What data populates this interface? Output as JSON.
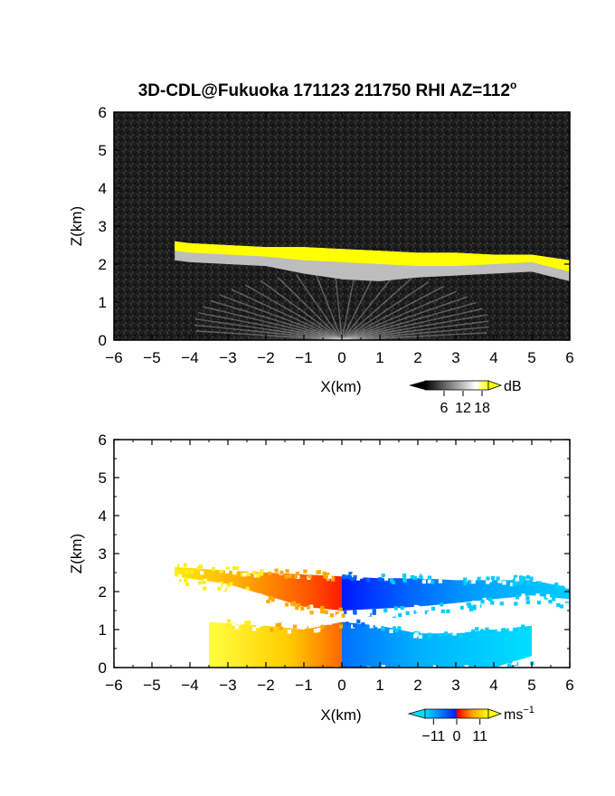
{
  "title": "3D-CDL@Fukuoka 171123 211750 RHI AZ=112",
  "title_sup": "o",
  "chart_data": [
    {
      "type": "heatmap",
      "panel": "reflectivity",
      "xlabel": "X(km)",
      "ylabel": "Z(km)",
      "xlim": [
        -6,
        6
      ],
      "ylim": [
        0,
        6
      ],
      "xticks": [
        "-6",
        "-5",
        "-4",
        "-3",
        "-2",
        "-1",
        "0",
        "1",
        "2",
        "3",
        "4",
        "5",
        "6"
      ],
      "yticks": [
        "0",
        "1",
        "2",
        "3",
        "4",
        "5",
        "6"
      ],
      "colorbar": {
        "unit": "dB",
        "ticks": [
          "6",
          "12",
          "18"
        ],
        "tick_values": [
          6,
          12,
          18
        ],
        "range": [
          0,
          20
        ],
        "colors": [
          "#000000",
          "#ffffff",
          "#ffff00"
        ]
      },
      "cloud_base": {
        "x": [
          -4.4,
          -4.0,
          -3.0,
          -2.0,
          -1.0,
          0.0,
          1.0,
          2.0,
          3.0,
          4.0,
          5.0,
          6.0
        ],
        "top_km": [
          2.6,
          2.55,
          2.5,
          2.45,
          2.45,
          2.4,
          2.35,
          2.3,
          2.3,
          2.25,
          2.25,
          2.1
        ],
        "bottom_km": [
          2.35,
          2.3,
          2.25,
          2.2,
          2.0,
          1.85,
          1.8,
          1.9,
          1.95,
          2.0,
          2.05,
          1.8
        ]
      },
      "ground_clutter_height_km": 1.3
    },
    {
      "type": "heatmap",
      "panel": "doppler_velocity",
      "xlabel": "X(km)",
      "ylabel": "Z(km)",
      "xlim": [
        -6,
        6
      ],
      "ylim": [
        0,
        6
      ],
      "xticks": [
        "-6",
        "-5",
        "-4",
        "-3",
        "-2",
        "-1",
        "0",
        "1",
        "2",
        "3",
        "4",
        "5",
        "6"
      ],
      "yticks": [
        "0",
        "1",
        "2",
        "3",
        "4",
        "5",
        "6"
      ],
      "colorbar": {
        "unit": "ms",
        "unit_sup": "−1",
        "ticks": [
          "−11",
          "0",
          "11"
        ],
        "tick_values": [
          -11,
          0,
          11
        ],
        "range": [
          -15,
          15
        ],
        "colors": [
          "#00e0ff",
          "#0020ff",
          "#ff0000",
          "#ffa500",
          "#ffff00"
        ]
      },
      "upper_layer": {
        "x": [
          -4.4,
          -3.0,
          -2.0,
          -1.0,
          0.0,
          1.0,
          2.0,
          3.0,
          4.0,
          5.0,
          6.0
        ],
        "top_km": [
          2.65,
          2.55,
          2.5,
          2.45,
          2.4,
          2.35,
          2.35,
          2.3,
          2.3,
          2.3,
          2.1
        ],
        "bottom_km": [
          2.4,
          2.2,
          1.9,
          1.6,
          1.5,
          1.55,
          1.6,
          1.7,
          1.8,
          1.9,
          1.8
        ]
      },
      "lower_layer": {
        "x": [
          -3.5,
          -2.0,
          -1.0,
          0.0,
          1.0,
          2.0,
          3.0,
          4.0,
          5.0
        ],
        "top_km": [
          1.2,
          1.1,
          1.0,
          1.2,
          1.1,
          0.9,
          0.9,
          1.0,
          1.1
        ],
        "bottom_km": [
          0.0,
          0.0,
          0.0,
          0.0,
          0.0,
          0.0,
          0.0,
          0.0,
          0.3
        ]
      }
    }
  ]
}
